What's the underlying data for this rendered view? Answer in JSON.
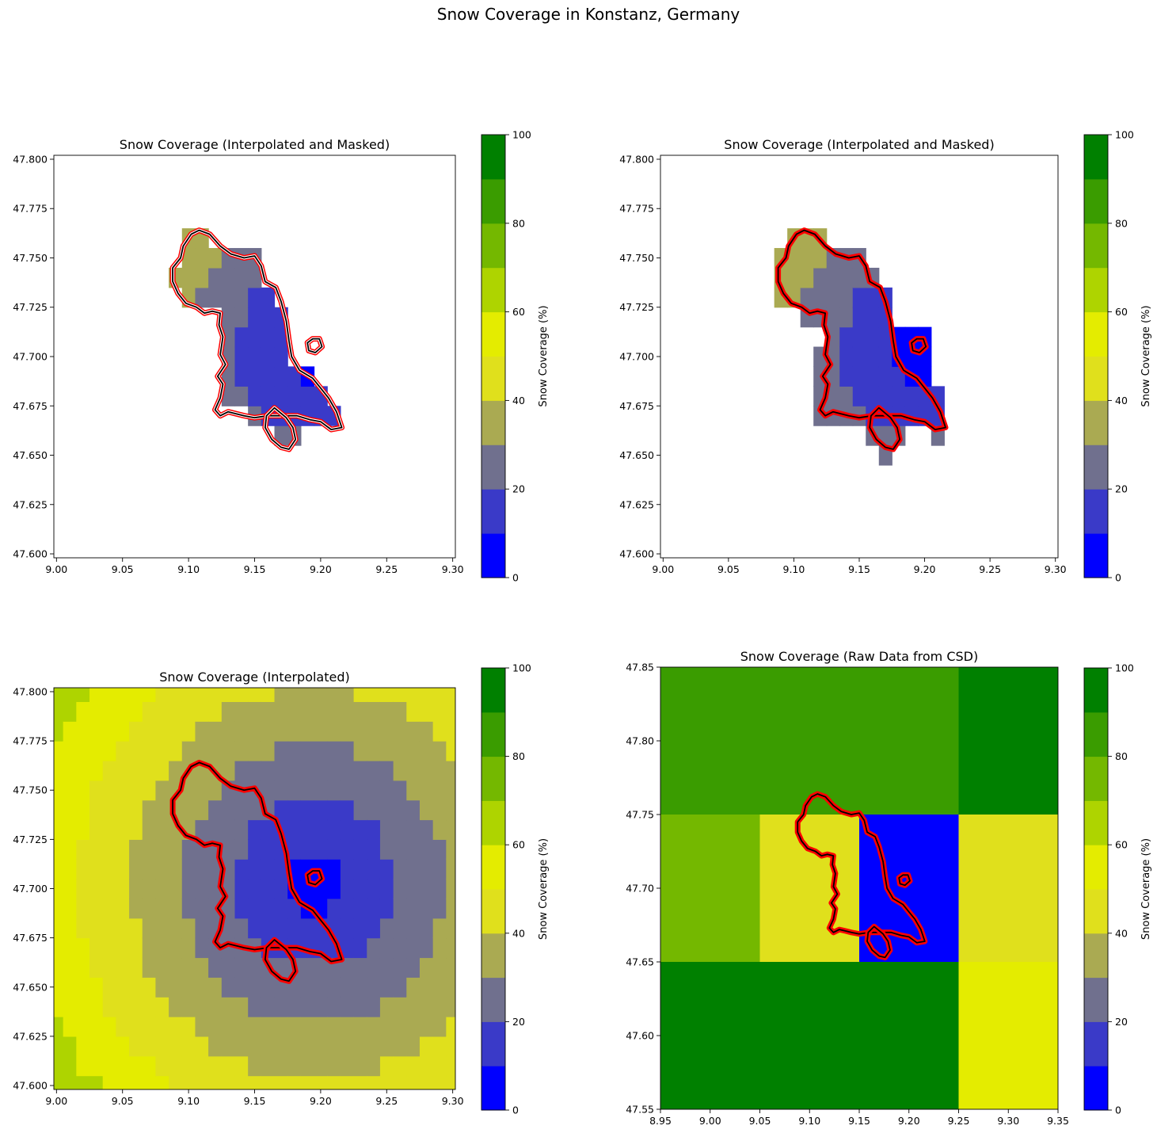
{
  "figure_title": "Snow Coverage in Konstanz, Germany",
  "colorbar": {
    "label": "Snow Coverage (%)",
    "ticks": [
      0,
      20,
      40,
      60,
      80,
      100
    ],
    "levels": [
      0,
      10,
      20,
      30,
      40,
      50,
      60,
      70,
      80,
      90,
      100
    ],
    "colors": [
      "#0000ff",
      "#3a3ac8",
      "#70708e",
      "#aaaa52",
      "#e0e01c",
      "#e4ec00",
      "#aed400",
      "#74b800",
      "#3a9c00",
      "#008000"
    ]
  },
  "chart_data": [
    {
      "type": "heatmap",
      "title": "Snow Coverage (Interpolated and Masked)",
      "xlim": [
        8.998,
        9.302
      ],
      "ylim": [
        47.598,
        47.802
      ],
      "xticks": [
        "9.00",
        "9.05",
        "9.10",
        "9.15",
        "9.20",
        "9.25",
        "9.30"
      ],
      "yticks": [
        "47.600",
        "47.625",
        "47.650",
        "47.675",
        "47.700",
        "47.725",
        "47.750",
        "47.775",
        "47.800"
      ],
      "grid_extent": {
        "x": [
          9.0,
          9.3
        ],
        "y": [
          47.6,
          47.8
        ],
        "step": 0.01
      },
      "mask": "inner_boundary",
      "boundaries": [
        "black",
        "red"
      ]
    },
    {
      "type": "heatmap",
      "title": "Snow Coverage (Interpolated and Masked)",
      "xlim": [
        8.998,
        9.302
      ],
      "ylim": [
        47.598,
        47.802
      ],
      "xticks": [
        "9.00",
        "9.05",
        "9.10",
        "9.15",
        "9.20",
        "9.25",
        "9.30"
      ],
      "yticks": [
        "47.600",
        "47.625",
        "47.650",
        "47.675",
        "47.700",
        "47.725",
        "47.750",
        "47.775",
        "47.800"
      ],
      "grid_extent": {
        "x": [
          9.0,
          9.3
        ],
        "y": [
          47.6,
          47.8
        ],
        "step": 0.01
      },
      "mask": "outer_boundary",
      "boundaries": [
        "black",
        "red"
      ]
    },
    {
      "type": "heatmap",
      "title": "Snow Coverage (Interpolated)",
      "xlim": [
        8.998,
        9.302
      ],
      "ylim": [
        47.598,
        47.802
      ],
      "xticks": [
        "9.00",
        "9.05",
        "9.10",
        "9.15",
        "9.20",
        "9.25",
        "9.30"
      ],
      "yticks": [
        "47.600",
        "47.625",
        "47.650",
        "47.675",
        "47.700",
        "47.725",
        "47.750",
        "47.775",
        "47.800"
      ],
      "grid_extent": {
        "x": [
          9.0,
          9.3
        ],
        "y": [
          47.6,
          47.8
        ],
        "step": 0.01
      },
      "mask": "none",
      "boundaries": [
        "black",
        "red"
      ]
    },
    {
      "type": "heatmap",
      "title": "Snow Coverage (Raw Data from CSD)",
      "xlim": [
        8.95,
        9.35
      ],
      "ylim": [
        47.55,
        47.85
      ],
      "xticks": [
        "8.95",
        "9.00",
        "9.05",
        "9.10",
        "9.15",
        "9.20",
        "9.25",
        "9.30",
        "9.35"
      ],
      "yticks": [
        "47.55",
        "47.60",
        "47.65",
        "47.70",
        "47.75",
        "47.80",
        "47.85"
      ],
      "boundaries": [
        "black",
        "red"
      ],
      "cells": [
        {
          "x": [
            8.95,
            9.25
          ],
          "y": [
            47.75,
            47.85
          ],
          "value": 85
        },
        {
          "x": [
            9.25,
            9.35
          ],
          "y": [
            47.75,
            47.85
          ],
          "value": 95
        },
        {
          "x": [
            8.95,
            9.05
          ],
          "y": [
            47.65,
            47.75
          ],
          "value": 75
        },
        {
          "x": [
            9.05,
            9.15
          ],
          "y": [
            47.65,
            47.75
          ],
          "value": 45
        },
        {
          "x": [
            9.15,
            9.25
          ],
          "y": [
            47.65,
            47.75
          ],
          "value": 5
        },
        {
          "x": [
            9.25,
            9.35
          ],
          "y": [
            47.65,
            47.75
          ],
          "value": 45
        },
        {
          "x": [
            8.95,
            9.25
          ],
          "y": [
            47.55,
            47.65
          ],
          "value": 95
        },
        {
          "x": [
            9.25,
            9.35
          ],
          "y": [
            47.55,
            47.65
          ],
          "value": 55
        }
      ]
    }
  ],
  "regions": {
    "konstanz": [
      [
        9.108,
        47.764
      ],
      [
        9.116,
        47.762
      ],
      [
        9.124,
        47.756
      ],
      [
        9.132,
        47.752
      ],
      [
        9.142,
        47.75
      ],
      [
        9.15,
        47.751
      ],
      [
        9.155,
        47.746
      ],
      [
        9.158,
        47.738
      ],
      [
        9.166,
        47.735
      ],
      [
        9.17,
        47.728
      ],
      [
        9.174,
        47.718
      ],
      [
        9.176,
        47.708
      ],
      [
        9.178,
        47.7
      ],
      [
        9.184,
        47.693
      ],
      [
        9.194,
        47.689
      ],
      [
        9.2,
        47.684
      ],
      [
        9.206,
        47.679
      ],
      [
        9.212,
        47.672
      ],
      [
        9.216,
        47.664
      ],
      [
        9.208,
        47.663
      ],
      [
        9.2,
        47.667
      ],
      [
        9.192,
        47.668
      ],
      [
        9.182,
        47.67
      ],
      [
        9.17,
        47.67
      ],
      [
        9.16,
        47.67
      ],
      [
        9.15,
        47.669
      ],
      [
        9.142,
        47.67
      ],
      [
        9.136,
        47.671
      ],
      [
        9.13,
        47.672
      ],
      [
        9.124,
        47.67
      ],
      [
        9.12,
        47.673
      ],
      [
        9.124,
        47.679
      ],
      [
        9.126,
        47.686
      ],
      [
        9.122,
        47.69
      ],
      [
        9.128,
        47.696
      ],
      [
        9.124,
        47.701
      ],
      [
        9.126,
        47.71
      ],
      [
        9.123,
        47.716
      ],
      [
        9.124,
        47.722
      ],
      [
        9.118,
        47.723
      ],
      [
        9.112,
        47.722
      ],
      [
        9.106,
        47.725
      ],
      [
        9.098,
        47.727
      ],
      [
        9.092,
        47.732
      ],
      [
        9.088,
        47.738
      ],
      [
        9.088,
        47.745
      ],
      [
        9.094,
        47.75
      ],
      [
        9.096,
        47.756
      ],
      [
        9.102,
        47.762
      ]
    ],
    "mainau": [
      [
        9.19,
        47.707
      ],
      [
        9.194,
        47.709
      ],
      [
        9.199,
        47.709
      ],
      [
        9.201,
        47.705
      ],
      [
        9.196,
        47.702
      ],
      [
        9.191,
        47.703
      ]
    ],
    "reichenau": [
      [
        9.165,
        47.674
      ],
      [
        9.174,
        47.669
      ],
      [
        9.179,
        47.664
      ],
      [
        9.181,
        47.658
      ],
      [
        9.176,
        47.653
      ],
      [
        9.17,
        47.654
      ],
      [
        9.163,
        47.658
      ],
      [
        9.158,
        47.664
      ],
      [
        9.159,
        47.67
      ]
    ]
  }
}
